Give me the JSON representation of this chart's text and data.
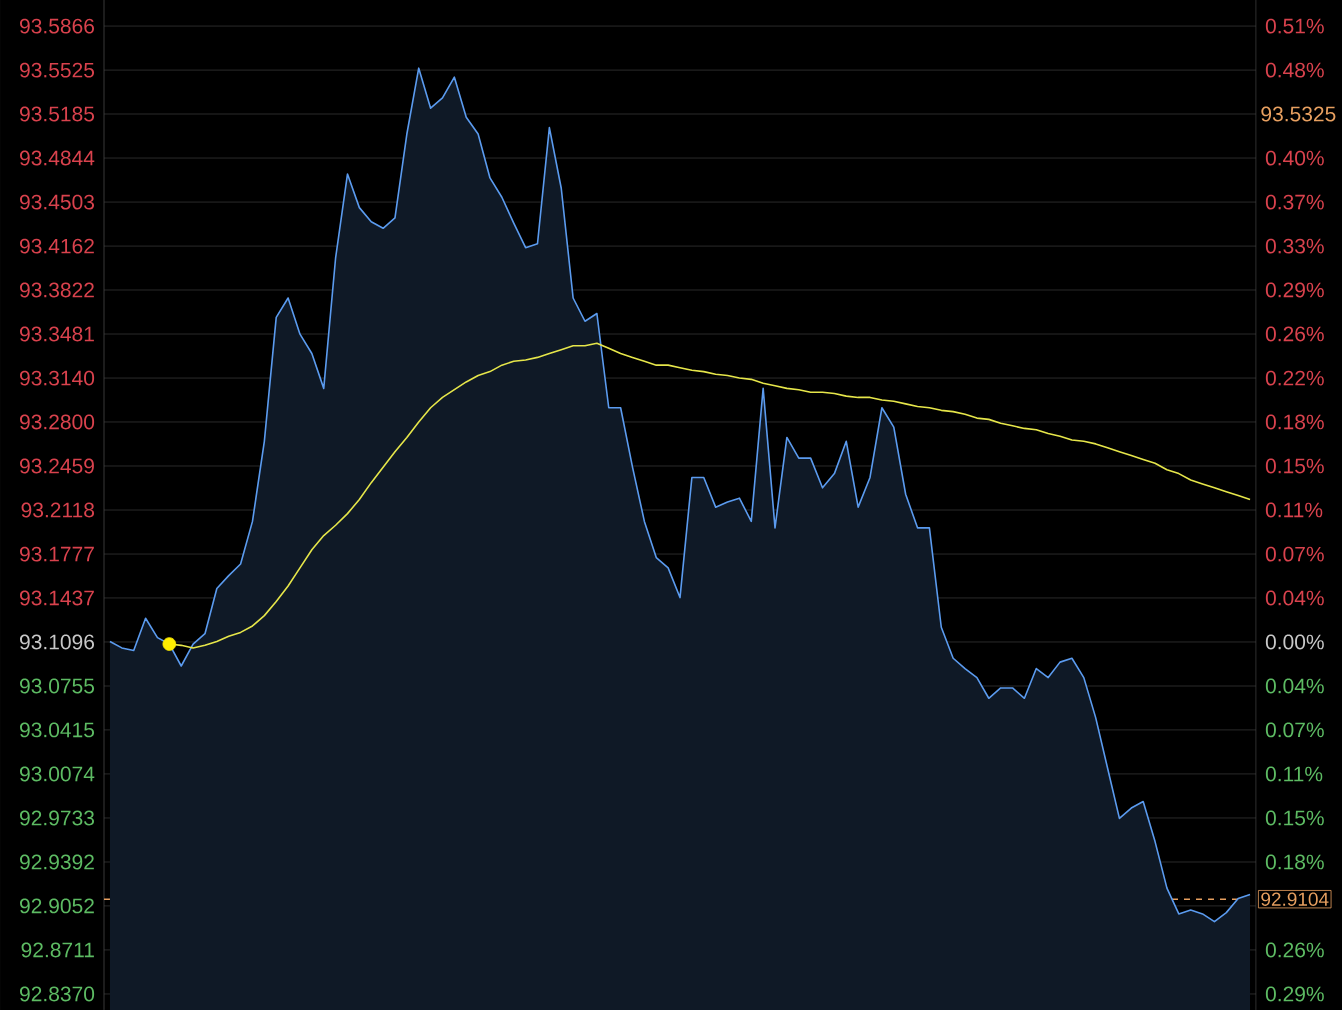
{
  "chart_data": {
    "type": "area",
    "categories": [
      null,
      null,
      null,
      null,
      null,
      null,
      null,
      null,
      null,
      null,
      null,
      null,
      null,
      null,
      null,
      null,
      null,
      null,
      null,
      null,
      null,
      null,
      null,
      null,
      null,
      null,
      null,
      null,
      null,
      null,
      null,
      null,
      null,
      null,
      null,
      null,
      null,
      null,
      null,
      null,
      null,
      null,
      null,
      null,
      null,
      null,
      null,
      null,
      null,
      null,
      null,
      null,
      null,
      null,
      null,
      null,
      null,
      null,
      null,
      null,
      null,
      null,
      null,
      null,
      null,
      null,
      null,
      null,
      null,
      null,
      null,
      null,
      null,
      null,
      null,
      null,
      null,
      null,
      null,
      null,
      null,
      null,
      null,
      null,
      null,
      null,
      null,
      null,
      null,
      null,
      null,
      null,
      null,
      null,
      null,
      null,
      null
    ],
    "series": [
      {
        "color": "#5b9bef",
        "values": [
          93.11,
          93.105,
          93.103,
          93.128,
          93.113,
          93.108,
          93.091,
          93.108,
          93.116,
          93.151,
          93.161,
          93.17,
          93.203,
          93.265,
          93.361,
          93.376,
          93.348,
          93.333,
          93.306,
          93.407,
          93.472,
          93.446,
          93.435,
          93.43,
          93.438,
          93.503,
          93.554,
          93.523,
          93.531,
          93.547,
          93.516,
          93.503,
          93.469,
          93.454,
          93.434,
          93.415,
          93.418,
          93.508,
          93.461,
          93.376,
          93.358,
          93.364,
          93.291,
          93.291,
          93.245,
          93.203,
          93.175,
          93.167,
          93.144,
          93.237,
          93.237,
          93.214,
          93.218,
          93.221,
          93.203,
          93.306,
          93.198,
          93.268,
          93.252,
          93.252,
          93.229,
          93.24,
          93.265,
          93.214,
          93.237,
          93.291,
          93.276,
          93.224,
          93.198,
          93.198,
          93.121,
          93.097,
          93.089,
          93.082,
          93.066,
          93.074,
          93.074,
          93.066,
          93.089,
          93.082,
          93.094,
          93.097,
          93.082,
          93.051,
          93.012,
          92.973,
          92.981,
          92.986,
          92.955,
          92.919,
          92.899,
          92.902,
          92.899,
          92.893,
          92.9,
          92.911,
          92.914
        ]
      },
      {
        "type": "line",
        "color": "#e6e64a",
        "values": [
          null,
          null,
          null,
          null,
          null,
          93.108,
          93.107,
          93.105,
          93.107,
          93.11,
          93.114,
          93.117,
          93.122,
          93.13,
          93.141,
          93.153,
          93.167,
          93.181,
          93.192,
          93.2,
          93.209,
          93.22,
          93.233,
          93.245,
          93.257,
          93.268,
          93.28,
          93.291,
          93.299,
          93.305,
          93.311,
          93.316,
          93.319,
          93.324,
          93.327,
          93.328,
          93.33,
          93.333,
          93.336,
          93.339,
          93.339,
          93.341,
          93.337,
          93.333,
          93.33,
          93.327,
          93.324,
          93.324,
          93.322,
          93.32,
          93.319,
          93.317,
          93.316,
          93.314,
          93.313,
          93.31,
          93.308,
          93.306,
          93.305,
          93.303,
          93.303,
          93.302,
          93.3,
          93.299,
          93.299,
          93.297,
          93.296,
          93.294,
          93.292,
          93.291,
          93.289,
          93.288,
          93.286,
          93.283,
          93.282,
          93.279,
          93.277,
          93.275,
          93.274,
          93.271,
          93.269,
          93.266,
          93.265,
          93.263,
          93.26,
          93.257,
          93.254,
          93.251,
          93.248,
          93.243,
          93.24,
          93.235,
          93.232,
          93.229,
          93.226,
          93.223,
          93.22
        ]
      },
      {
        "type": "scatter",
        "color": "#ffee00",
        "marker": "circle",
        "values": [
          null,
          null,
          null,
          null,
          null,
          93.108,
          null,
          null,
          null,
          null,
          null,
          null,
          null,
          null,
          null,
          null,
          null,
          null,
          null,
          null,
          null,
          null,
          null,
          null,
          null,
          null,
          null,
          null,
          null,
          null,
          null,
          null,
          null,
          null,
          null,
          null,
          null,
          null,
          null,
          null,
          null,
          null,
          null,
          null,
          null,
          null,
          null,
          null,
          null,
          null,
          null,
          null,
          null,
          null,
          null,
          null,
          null,
          null,
          null,
          null,
          null,
          null,
          null,
          null,
          null,
          null,
          null,
          null,
          null,
          null,
          null,
          null,
          null,
          null,
          null,
          null,
          null,
          null,
          null,
          null,
          null,
          null,
          null,
          null,
          null,
          null,
          null,
          null,
          null,
          null,
          null,
          null,
          null,
          null,
          null,
          null,
          null
        ]
      }
    ],
    "ylim": [
      92.8246,
      93.6068
    ],
    "yticks": [
      93.5866,
      93.5525,
      93.5185,
      93.4844,
      93.4503,
      93.4162,
      93.3822,
      93.3481,
      {
        "value": 93.314,
        "label": "93.3140"
      },
      {
        "value": 93.28,
        "label": "93.2800"
      },
      93.2459,
      93.2118,
      93.1777,
      93.1437,
      93.1096,
      93.0755,
      93.0415,
      93.0074,
      92.9733,
      92.9392,
      92.9052,
      92.8711,
      {
        "value": 92.837,
        "label": "92.8370"
      }
    ],
    "y2lim": [
      -0.3061,
      0.534
    ],
    "y2ticks": [
      {
        "value": 0.5123,
        "label": "0.51%"
      },
      {
        "value": 0.4757,
        "label": "0.48%"
      },
      {
        "value": 0.4025,
        "label": "0.40%"
      },
      {
        "value": 0.3659,
        "label": "0.37%"
      },
      {
        "value": 0.3293,
        "label": "0.33%"
      },
      {
        "value": 0.2928,
        "label": "0.29%"
      },
      {
        "value": 0.2562,
        "label": "0.26%"
      },
      {
        "value": 0.2195,
        "label": "0.22%"
      },
      {
        "value": 0.183,
        "label": "0.18%"
      },
      {
        "value": 0.1464,
        "label": "0.15%"
      },
      {
        "value": 0.1098,
        "label": "0.11%"
      },
      {
        "value": 0.0731,
        "label": "0.07%"
      },
      {
        "value": 0.0366,
        "label": "0.04%"
      },
      {
        "value": 0,
        "label": "0.00%"
      },
      {
        "value": -0.0366,
        "label": "0.04%"
      },
      {
        "value": -0.0731,
        "label": "0.07%"
      },
      {
        "value": -0.1098,
        "label": "0.11%"
      },
      {
        "value": -0.1464,
        "label": "0.15%"
      },
      {
        "value": -0.183,
        "label": "0.18%"
      },
      {
        "value": -0.2562,
        "label": "0.26%"
      },
      {
        "value": -0.2928,
        "label": "0.29%"
      }
    ],
    "ref_lines": [
      {
        "axis": "y",
        "value": 92.9104,
        "label": "92.9104",
        "color": "#e8a060",
        "line_style": "dashed"
      }
    ],
    "annotations": [
      "93.5325"
    ],
    "grid": "y",
    "tick_labels": "y"
  }
}
